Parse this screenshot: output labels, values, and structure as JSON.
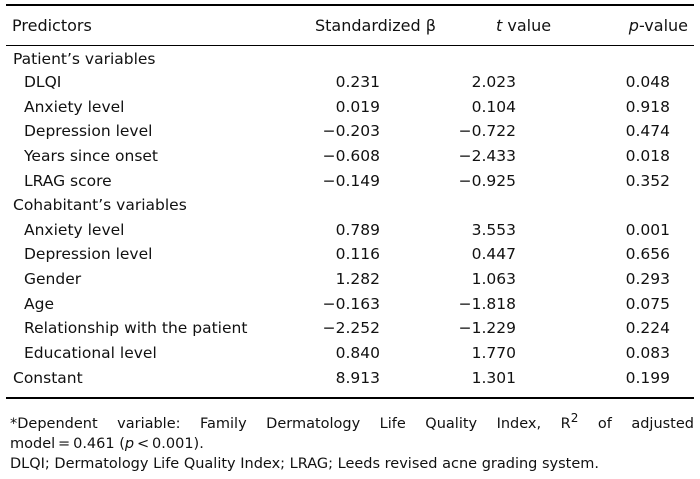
{
  "headers": {
    "predictors": "Predictors",
    "beta": "Standardized β",
    "t_italic": "t",
    "t_rest": " value",
    "p_italic": "p",
    "p_rest": "-value"
  },
  "sections": [
    {
      "label": "Patient’s variables",
      "rows": [
        {
          "name": "DLQI",
          "beta": "0.231",
          "t": "2.023",
          "p": "0.048"
        },
        {
          "name": "Anxiety level",
          "beta": "0.019",
          "t": "0.104",
          "p": "0.918"
        },
        {
          "name": "Depression level",
          "beta": "−0.203",
          "t": "−0.722",
          "p": "0.474"
        },
        {
          "name": "Years since onset",
          "beta": "−0.608",
          "t": "−2.433",
          "p": "0.018"
        },
        {
          "name": "LRAG score",
          "beta": "−0.149",
          "t": "−0.925",
          "p": "0.352"
        }
      ]
    },
    {
      "label": "Cohabitant’s variables",
      "rows": [
        {
          "name": "Anxiety level",
          "beta": "0.789",
          "t": "3.553",
          "p": "0.001"
        },
        {
          "name": "Depression level",
          "beta": "0.116",
          "t": "0.447",
          "p": "0.656"
        },
        {
          "name": "Gender",
          "beta": "1.282",
          "t": "1.063",
          "p": "0.293"
        },
        {
          "name": "Age",
          "beta": "−0.163",
          "t": "−1.818",
          "p": "0.075"
        },
        {
          "name": "Relationship with the patient",
          "beta": "−2.252",
          "t": "−1.229",
          "p": "0.224"
        },
        {
          "name": "Educational level",
          "beta": "0.840",
          "t": "1.770",
          "p": "0.083"
        }
      ]
    }
  ],
  "constant": {
    "name": "Constant",
    "beta": "8.913",
    "t": "1.301",
    "p": "0.199"
  },
  "footnotes": {
    "line1_a": "*Dependent variable: Family Dermatology Life Quality Index, R",
    "line1_sup": "2",
    "line1_b": " of adjusted",
    "line2_a": "model = 0.461 (",
    "line2_p": "p",
    "line2_b": " < 0.001).",
    "line3": "DLQI; Dermatology Life Quality Index; LRAG; Leeds revised acne grading system."
  }
}
